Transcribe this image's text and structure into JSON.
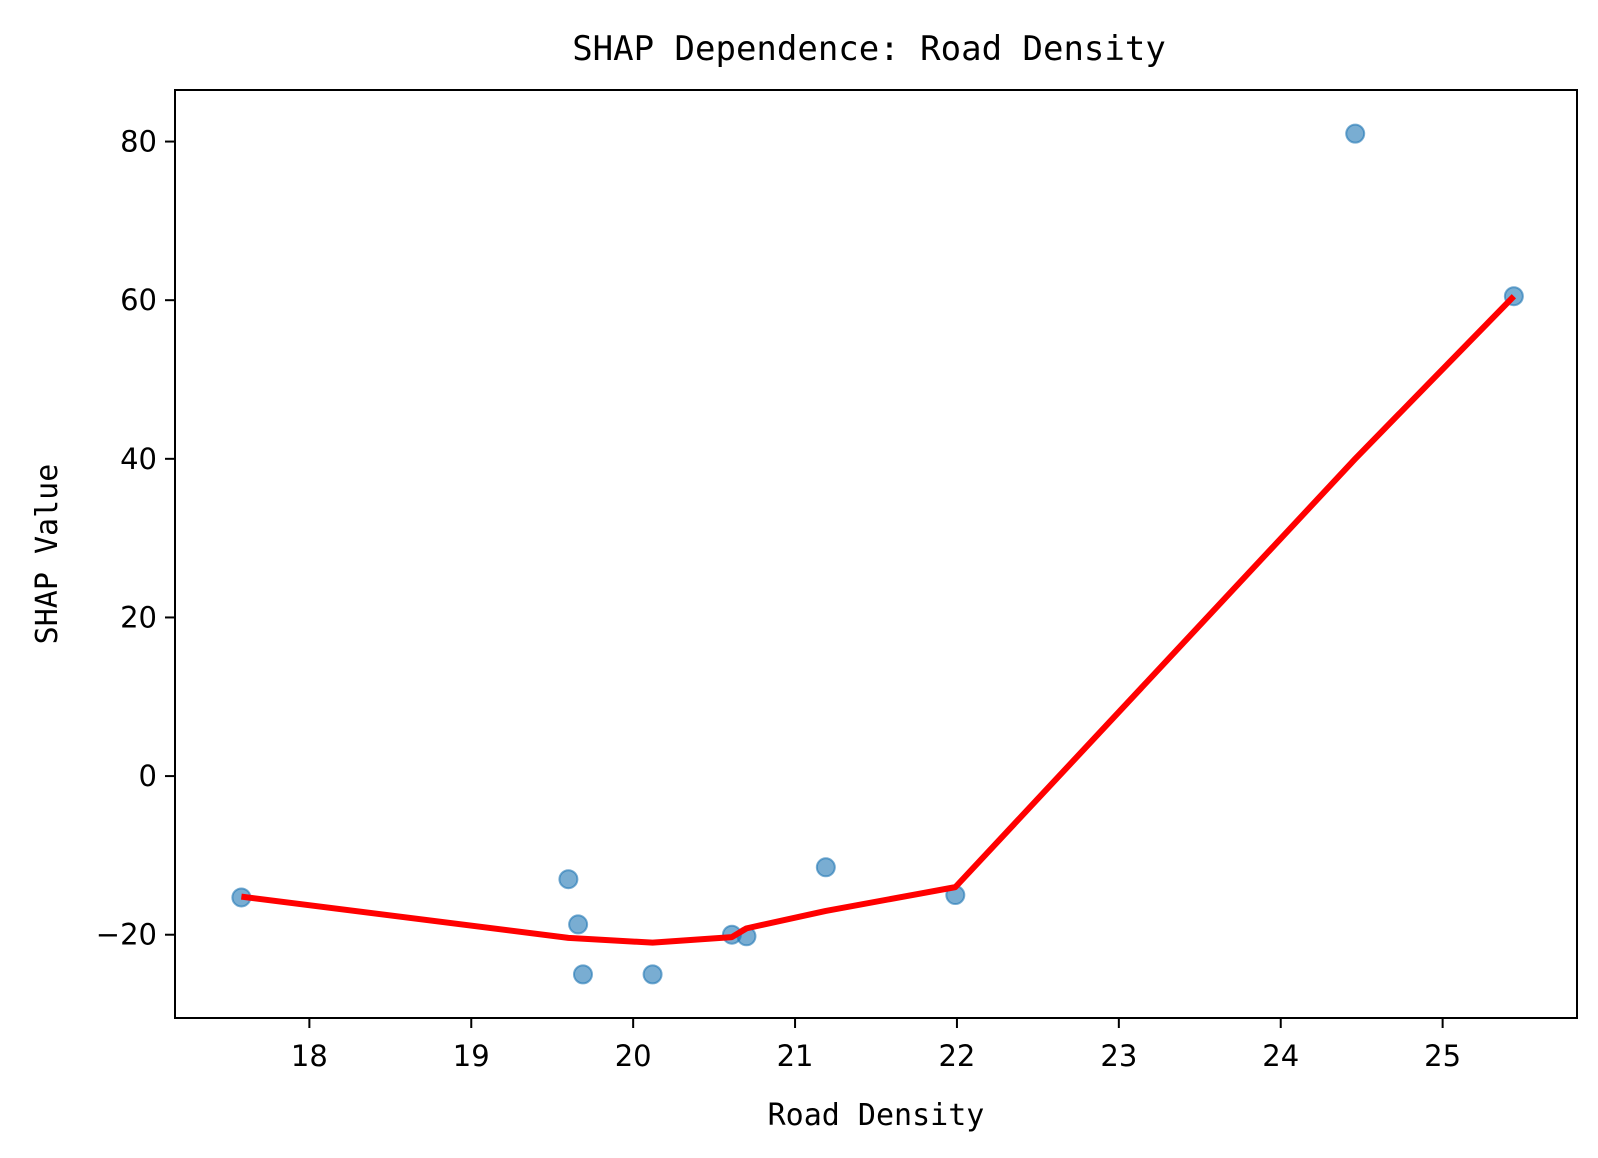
{
  "chart_data": {
    "type": "scatter",
    "title": "SHAP Dependence: Road Density",
    "xlabel": "Road Density",
    "ylabel": "SHAP Value",
    "xlim": [
      17.17,
      25.83
    ],
    "ylim": [
      -30.5,
      86.5
    ],
    "xticks": [
      18,
      19,
      20,
      21,
      22,
      23,
      24,
      25
    ],
    "yticks": [
      -20,
      0,
      20,
      40,
      60,
      80
    ],
    "ytick_labels": [
      "−20",
      "0",
      "20",
      "40",
      "60",
      "80"
    ],
    "grid": false,
    "legend": false,
    "colors": {
      "points": "#1f77b4",
      "trend": "#ff0000"
    },
    "series": [
      {
        "kind": "scatter",
        "points": [
          {
            "x": 17.58,
            "y": -15.3
          },
          {
            "x": 19.6,
            "y": -13.0
          },
          {
            "x": 19.66,
            "y": -18.7
          },
          {
            "x": 19.69,
            "y": -25.0
          },
          {
            "x": 20.12,
            "y": -25.0
          },
          {
            "x": 20.61,
            "y": -20.0
          },
          {
            "x": 20.7,
            "y": -20.2
          },
          {
            "x": 21.19,
            "y": -11.5
          },
          {
            "x": 21.99,
            "y": -15.0
          },
          {
            "x": 24.46,
            "y": 81.0
          },
          {
            "x": 25.44,
            "y": 60.5
          }
        ]
      },
      {
        "kind": "line",
        "points": [
          {
            "x": 17.58,
            "y": -15.2
          },
          {
            "x": 19.6,
            "y": -20.4
          },
          {
            "x": 20.12,
            "y": -21.0
          },
          {
            "x": 20.61,
            "y": -20.3
          },
          {
            "x": 20.7,
            "y": -19.2
          },
          {
            "x": 21.19,
            "y": -17.0
          },
          {
            "x": 21.99,
            "y": -14.0
          },
          {
            "x": 24.46,
            "y": 40.0
          },
          {
            "x": 25.44,
            "y": 60.5
          }
        ]
      }
    ]
  }
}
